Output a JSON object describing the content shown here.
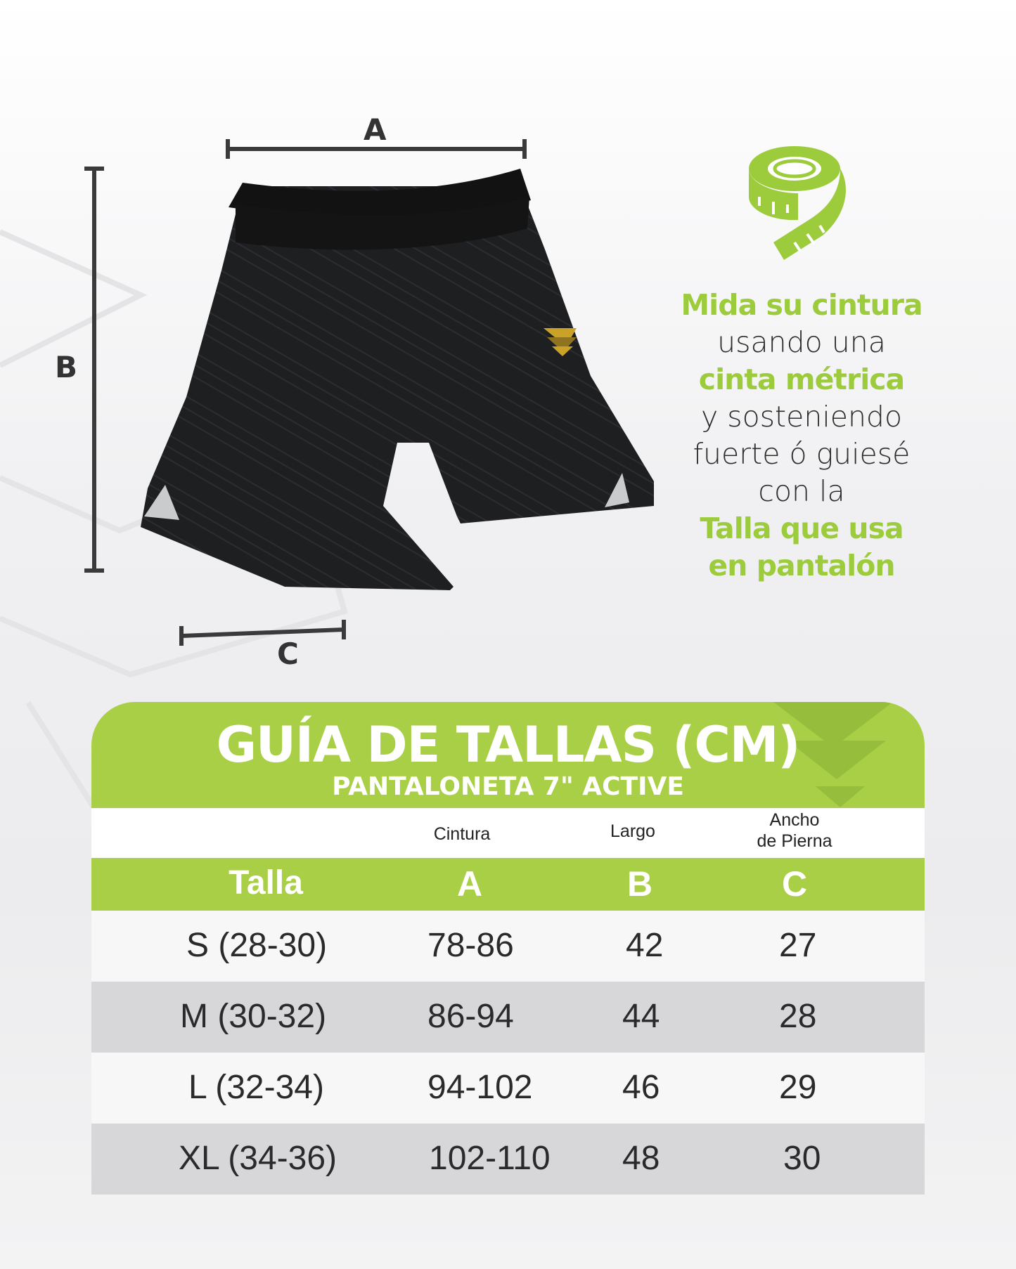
{
  "dimensions": {
    "a": "A",
    "b": "B",
    "c": "C"
  },
  "instructions": [
    {
      "text": "Mida su cintura",
      "highlight": true
    },
    {
      "text": "usando una",
      "highlight": false
    },
    {
      "text": "cinta métrica",
      "highlight": true
    },
    {
      "text": "y sosteniendo",
      "highlight": false
    },
    {
      "text": "fuerte ó guiesé",
      "highlight": false
    },
    {
      "text": "con la",
      "highlight": false
    },
    {
      "text": "Talla que usa",
      "highlight": true
    },
    {
      "text": "en pantalón",
      "highlight": true
    }
  ],
  "icons": {
    "tape": "measuring-tape-icon",
    "logo": "chevron-logo-icon"
  },
  "colors": {
    "accent": "#a8cf45",
    "text": "#2a2a2a",
    "alt_row": "#d7d7d9"
  },
  "table": {
    "title": "GUÍA DE TALLAS (CM)",
    "subtitle": "PANTALONETA 7\" ACTIVE",
    "column_descriptions": [
      "Cintura",
      "Largo",
      "Ancho\nde Pierna"
    ],
    "column_desc_c_line1": "Ancho",
    "column_desc_c_line2": "de Pierna",
    "headers": [
      "Talla",
      "A",
      "B",
      "C"
    ],
    "rows": [
      [
        "S (28-30)",
        "78-86",
        "42",
        "27"
      ],
      [
        "M (30-32)",
        "86-94",
        "44",
        "28"
      ],
      [
        "L (32-34)",
        "94-102",
        "46",
        "29"
      ],
      [
        "XL (34-36)",
        "102-110",
        "48",
        "30"
      ]
    ]
  }
}
